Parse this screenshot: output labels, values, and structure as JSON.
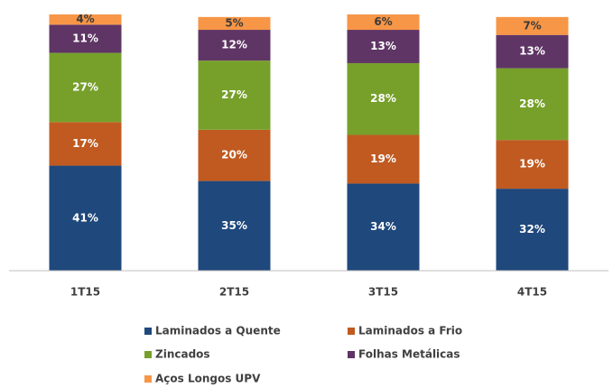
{
  "chart_data": {
    "type": "stacked_bar",
    "categories": [
      "1T15",
      "2T15",
      "3T15",
      "4T15"
    ],
    "ylim": [
      0,
      100
    ],
    "legend": "bottom",
    "series": [
      {
        "name": "Laminados a Quente",
        "color": "#1f487c",
        "values": [
          41,
          35,
          34,
          32
        ],
        "value_labels": [
          "41%",
          "35%",
          "34%",
          "32%"
        ]
      },
      {
        "name": "Laminados a Frio",
        "color": "#c05a20",
        "values": [
          17,
          20,
          19,
          19
        ],
        "value_labels": [
          "17%",
          "20%",
          "19%",
          "19%"
        ]
      },
      {
        "name": "Zincados",
        "color": "#77a02b",
        "values": [
          27,
          27,
          28,
          28
        ],
        "value_labels": [
          "27%",
          "27%",
          "28%",
          "28%"
        ]
      },
      {
        "name": "Folhas Metálicas",
        "color": "#5f3565",
        "values": [
          11,
          12,
          13,
          13
        ],
        "value_labels": [
          "11%",
          "12%",
          "13%",
          "13%"
        ]
      },
      {
        "name": "Aços Longos UPV",
        "color": "#f79646",
        "values": [
          4,
          5,
          6,
          7
        ],
        "value_labels": [
          "4%",
          "5%",
          "6%",
          "7%"
        ]
      }
    ]
  }
}
